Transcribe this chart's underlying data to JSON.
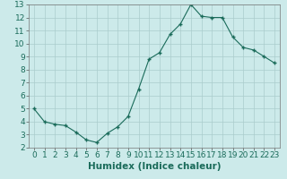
{
  "x": [
    0,
    1,
    2,
    3,
    4,
    5,
    6,
    7,
    8,
    9,
    10,
    11,
    12,
    13,
    14,
    15,
    16,
    17,
    18,
    19,
    20,
    21,
    22,
    23
  ],
  "y": [
    5.0,
    4.0,
    3.8,
    3.7,
    3.2,
    2.6,
    2.4,
    3.1,
    3.6,
    4.4,
    6.5,
    8.8,
    9.3,
    10.7,
    11.5,
    13.0,
    12.1,
    12.0,
    12.0,
    10.5,
    9.7,
    9.5,
    9.0,
    8.5
  ],
  "xlabel": "Humidex (Indice chaleur)",
  "xlim": [
    -0.5,
    23.5
  ],
  "ylim": [
    2,
    13
  ],
  "yticks": [
    2,
    3,
    4,
    5,
    6,
    7,
    8,
    9,
    10,
    11,
    12,
    13
  ],
  "xticks": [
    0,
    1,
    2,
    3,
    4,
    5,
    6,
    7,
    8,
    9,
    10,
    11,
    12,
    13,
    14,
    15,
    16,
    17,
    18,
    19,
    20,
    21,
    22,
    23
  ],
  "line_color": "#1a6b5a",
  "marker_color": "#1a6b5a",
  "bg_color": "#cceaea",
  "grid_color": "#aacccc",
  "xlabel_fontsize": 7.5,
  "tick_fontsize": 6.5
}
